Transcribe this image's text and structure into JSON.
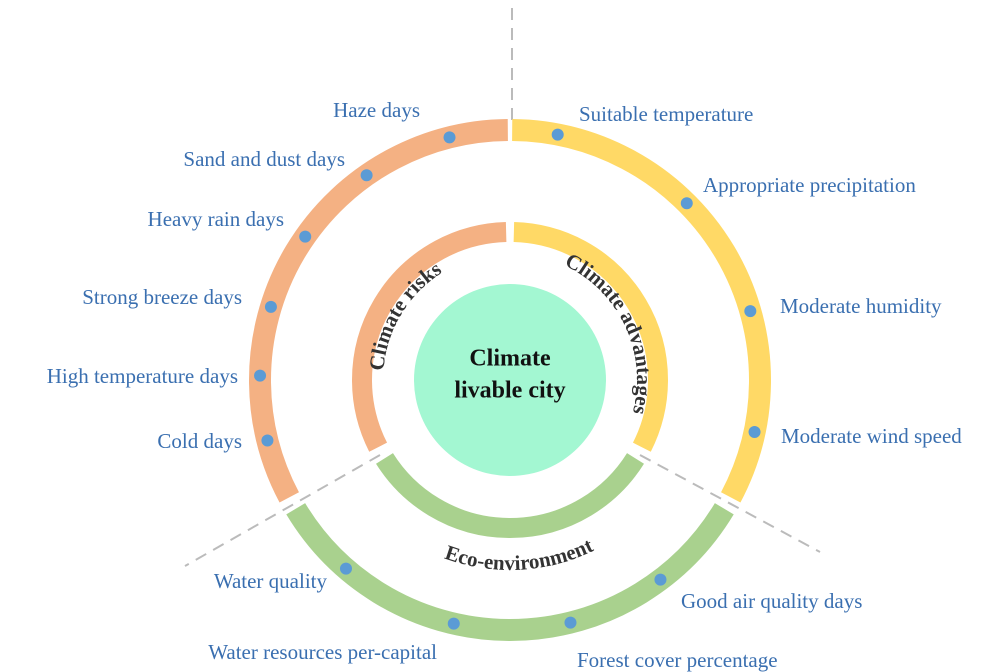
{
  "center": {
    "lines": [
      "Climate",
      "livable city"
    ]
  },
  "segments": [
    {
      "title": "Climate advantages",
      "indicators": [
        "Suitable temperature",
        "Appropriate precipitation",
        "Moderate humidity",
        "Moderate wind speed"
      ]
    },
    {
      "title": "Eco-environment",
      "indicators": [
        "Good air quality days",
        "Forest cover percentage",
        "Water resources per-capital",
        "Water quality"
      ]
    },
    {
      "title": "Climate risks",
      "indicators": [
        "Cold days",
        "High temperature days",
        "Strong breeze days",
        "Heavy rain days",
        "Sand and dust days",
        "Haze days"
      ]
    }
  ]
}
